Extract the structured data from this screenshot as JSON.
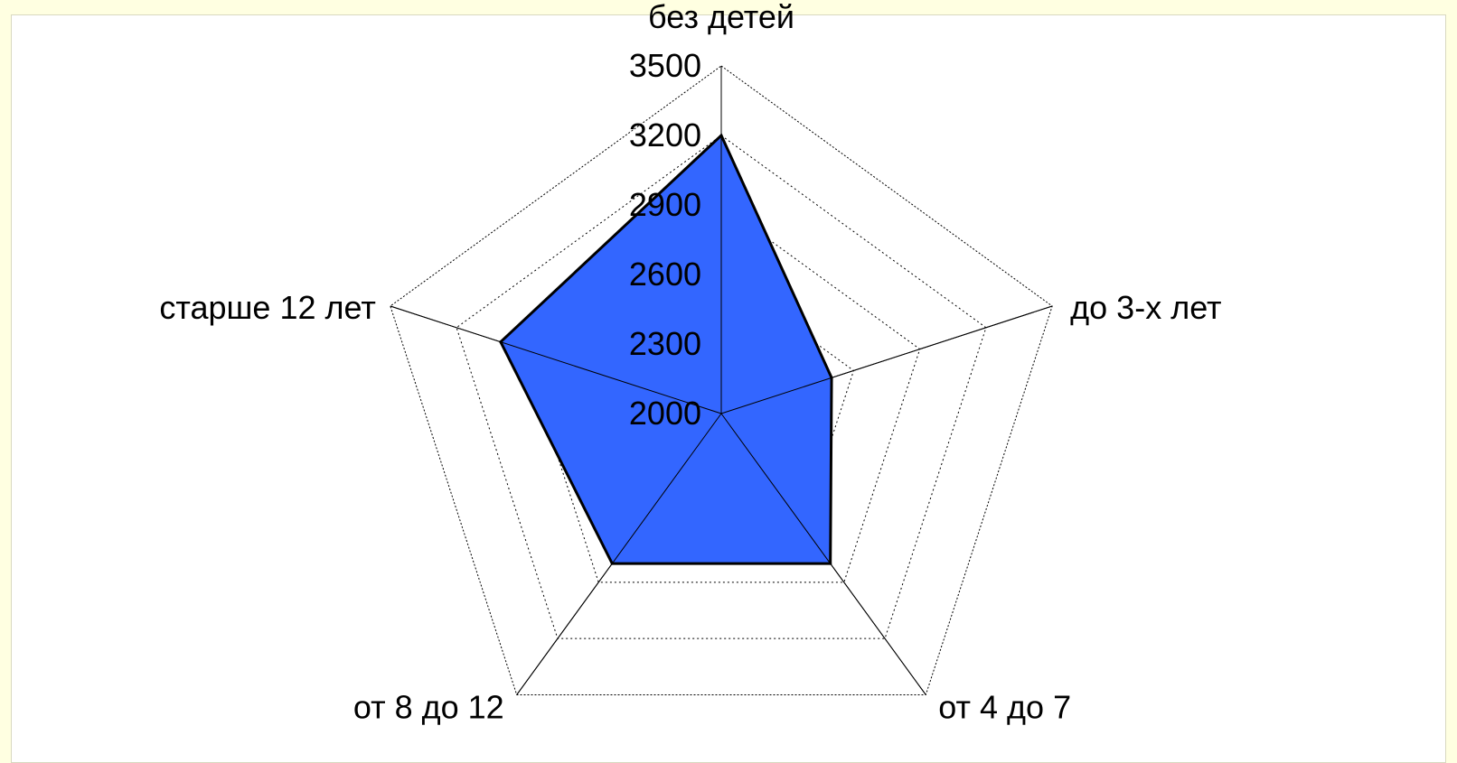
{
  "chart_data": {
    "type": "radar",
    "categories": [
      "без детей",
      "до 3-х лет",
      "от 4 до 7",
      "от 8 до 12",
      "старше 12 лет"
    ],
    "series": [
      {
        "values": [
          3200,
          2500,
          2800,
          2800,
          3000
        ],
        "color": "#3366FF"
      }
    ],
    "rticks": [
      2000,
      2300,
      2600,
      2900,
      3200,
      3500
    ],
    "rlim": [
      2000,
      3500
    ],
    "grid": true,
    "legend": "none"
  },
  "colors": {
    "page_background": "#FFFFE1",
    "plot_background": "#FFFFFF",
    "series_fill": "#3366FF",
    "series_stroke": "#000000"
  }
}
